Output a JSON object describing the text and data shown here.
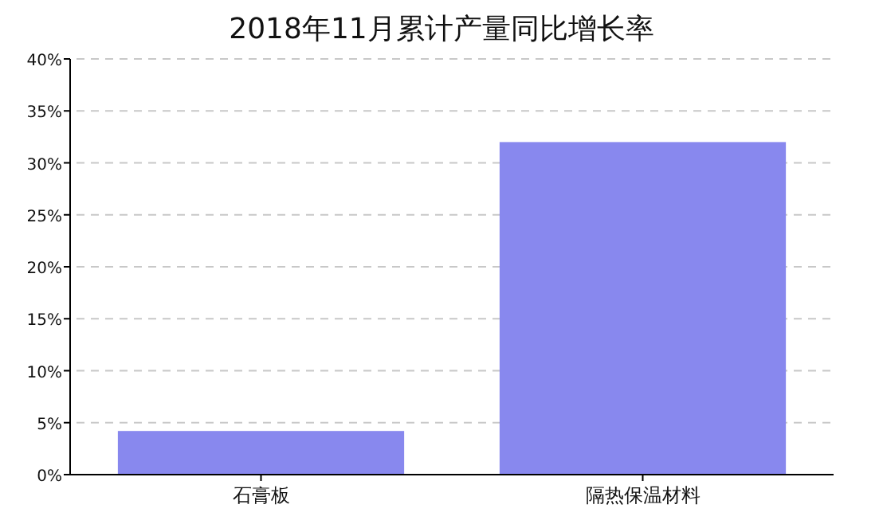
{
  "chart_data": {
    "type": "bar",
    "title": "2018年11月累计产量同比增长率",
    "categories": [
      "石膏板",
      "隔热保温材料"
    ],
    "values": [
      4.2,
      32
    ],
    "color": "#8888ee",
    "ylim": [
      0,
      40
    ],
    "yticks": [
      {
        "value": 0,
        "label": "0%"
      },
      {
        "value": 5,
        "label": "5%"
      },
      {
        "value": 10,
        "label": "10%"
      },
      {
        "value": 15,
        "label": "15%"
      },
      {
        "value": 20,
        "label": "20%"
      },
      {
        "value": 25,
        "label": "25%"
      },
      {
        "value": 30,
        "label": "30%"
      },
      {
        "value": 35,
        "label": "35%"
      },
      {
        "value": 40,
        "label": "40%"
      }
    ],
    "grid": "y"
  }
}
